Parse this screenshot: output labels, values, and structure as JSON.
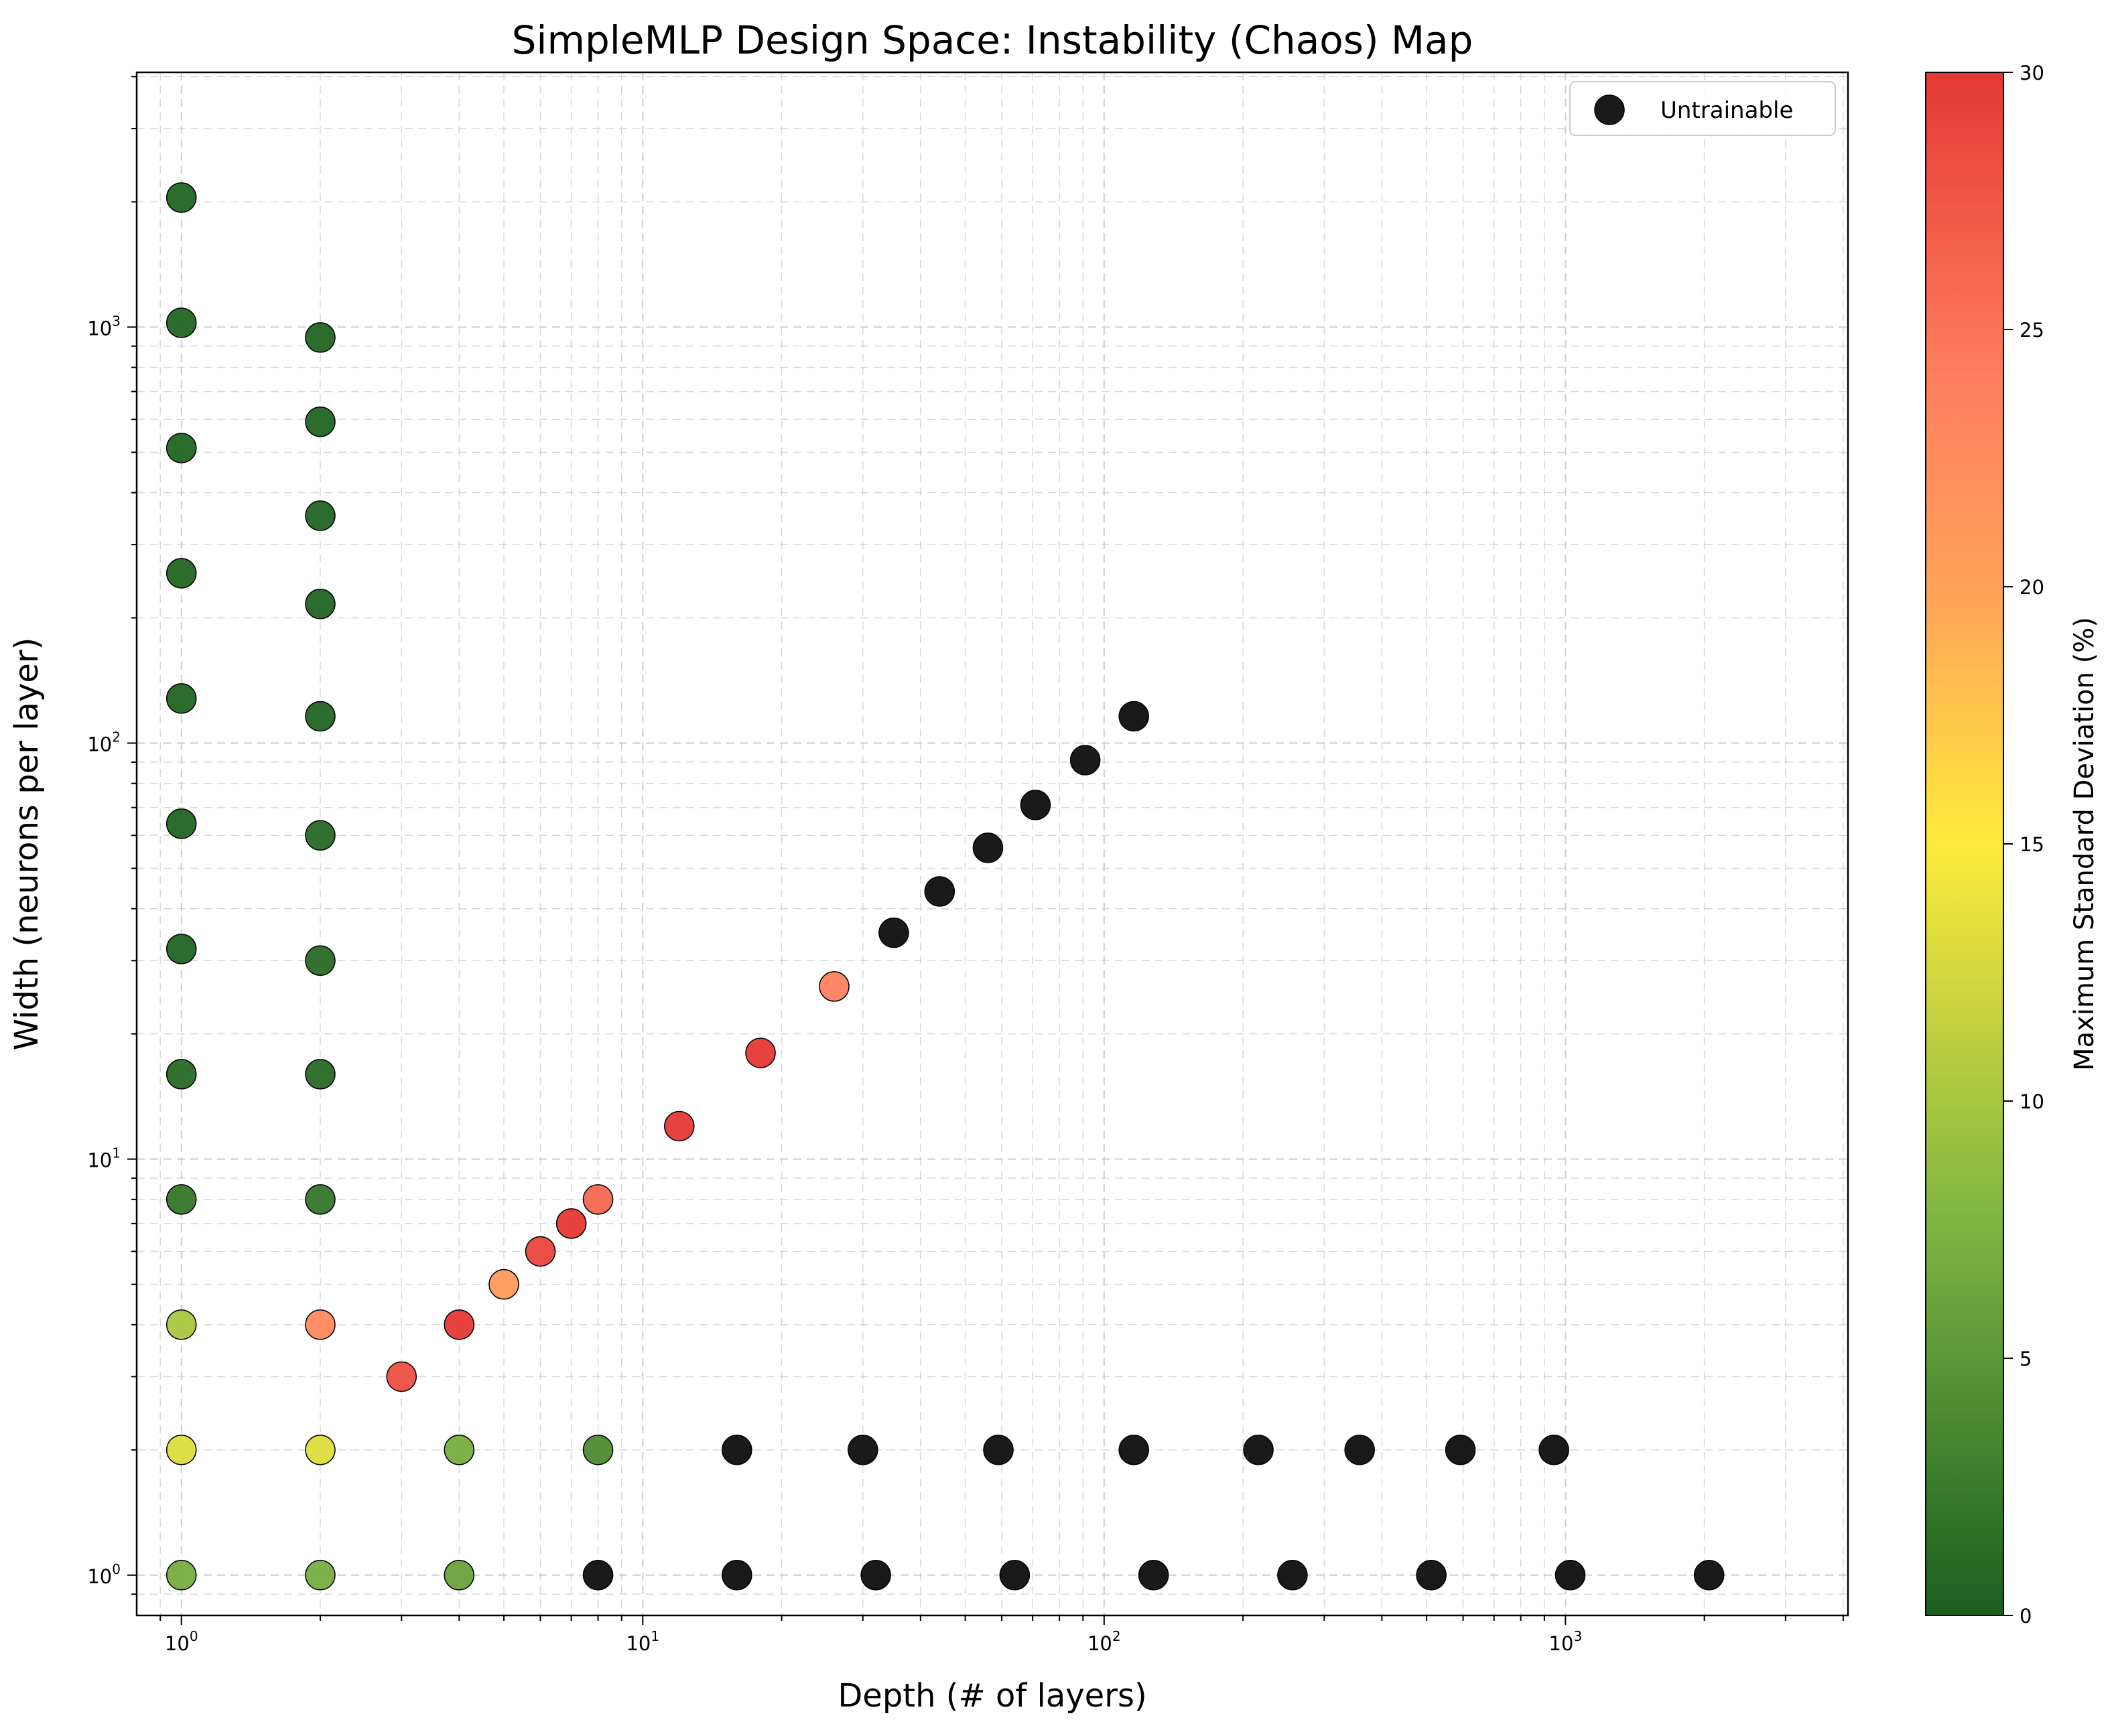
{
  "chart_data": {
    "type": "scatter",
    "title": "SimpleMLP Design Space: Instability (Chaos) Map",
    "xlabel": "Depth (# of layers)",
    "ylabel": "Width (neurons per layer)",
    "xscale": "log",
    "yscale": "log",
    "xlim": [
      0.8,
      4096
    ],
    "ylim": [
      0.8,
      4096
    ],
    "x_ticks": [
      {
        "base": "10",
        "exp": "0",
        "value": 1
      },
      {
        "base": "10",
        "exp": "1",
        "value": 10
      },
      {
        "base": "10",
        "exp": "2",
        "value": 100
      },
      {
        "base": "10",
        "exp": "3",
        "value": 1000
      }
    ],
    "y_ticks": [
      {
        "base": "10",
        "exp": "0",
        "value": 1
      },
      {
        "base": "10",
        "exp": "1",
        "value": 10
      },
      {
        "base": "10",
        "exp": "2",
        "value": 100
      },
      {
        "base": "10",
        "exp": "3",
        "value": 1000
      }
    ],
    "grid": true,
    "legend": {
      "position": "top-right",
      "entries": [
        "Untrainable"
      ]
    },
    "colorbar": {
      "label": "Maximum Standard Deviation (%)",
      "range": [
        0,
        30
      ],
      "ticks": [
        "0",
        "5",
        "10",
        "15",
        "20",
        "25",
        "30"
      ],
      "colors": [
        "#1b5e20",
        "#7cb342",
        "#ffeb3b",
        "#ffa15a",
        "#ff7f5e",
        "#e53935"
      ]
    },
    "untrainable_color": "#1a1a1a",
    "trainable": [
      {
        "x": 1,
        "y": 2048,
        "std": 0.5
      },
      {
        "x": 1,
        "y": 1024,
        "std": 0.5
      },
      {
        "x": 1,
        "y": 512,
        "std": 0.5
      },
      {
        "x": 1,
        "y": 256,
        "std": 0.5
      },
      {
        "x": 1,
        "y": 128,
        "std": 0.5
      },
      {
        "x": 1,
        "y": 64,
        "std": 0.5
      },
      {
        "x": 1,
        "y": 32,
        "std": 0.5
      },
      {
        "x": 1,
        "y": 16,
        "std": 1
      },
      {
        "x": 1,
        "y": 8,
        "std": 2
      },
      {
        "x": 1,
        "y": 4,
        "std": 10
      },
      {
        "x": 1,
        "y": 2,
        "std": 13
      },
      {
        "x": 1,
        "y": 1,
        "std": 7
      },
      {
        "x": 2,
        "y": 944,
        "std": 0.5
      },
      {
        "x": 2,
        "y": 592,
        "std": 0.5
      },
      {
        "x": 2,
        "y": 352,
        "std": 0.5
      },
      {
        "x": 2,
        "y": 216,
        "std": 0.5
      },
      {
        "x": 2,
        "y": 116,
        "std": 0.5
      },
      {
        "x": 2,
        "y": 60,
        "std": 1
      },
      {
        "x": 2,
        "y": 30,
        "std": 1
      },
      {
        "x": 2,
        "y": 16,
        "std": 1
      },
      {
        "x": 2,
        "y": 8,
        "std": 2
      },
      {
        "x": 2,
        "y": 4,
        "std": 23
      },
      {
        "x": 2,
        "y": 2,
        "std": 13
      },
      {
        "x": 2,
        "y": 1,
        "std": 7
      },
      {
        "x": 3,
        "y": 3,
        "std": 28
      },
      {
        "x": 4,
        "y": 4,
        "std": 30
      },
      {
        "x": 4,
        "y": 2,
        "std": 7
      },
      {
        "x": 4,
        "y": 1,
        "std": 6
      },
      {
        "x": 5,
        "y": 5,
        "std": 21
      },
      {
        "x": 6,
        "y": 6,
        "std": 29
      },
      {
        "x": 7,
        "y": 7,
        "std": 30
      },
      {
        "x": 8,
        "y": 8,
        "std": 26
      },
      {
        "x": 8,
        "y": 2,
        "std": 4
      },
      {
        "x": 12,
        "y": 12,
        "std": 30
      },
      {
        "x": 18,
        "y": 18,
        "std": 30
      },
      {
        "x": 26,
        "y": 26,
        "std": 24
      }
    ],
    "untrainable": [
      {
        "x": 35,
        "y": 35
      },
      {
        "x": 44,
        "y": 44
      },
      {
        "x": 56,
        "y": 56
      },
      {
        "x": 71,
        "y": 71
      },
      {
        "x": 91,
        "y": 91
      },
      {
        "x": 116,
        "y": 116
      },
      {
        "x": 16,
        "y": 2
      },
      {
        "x": 30,
        "y": 2
      },
      {
        "x": 59,
        "y": 2
      },
      {
        "x": 116,
        "y": 2
      },
      {
        "x": 216,
        "y": 2
      },
      {
        "x": 358,
        "y": 2
      },
      {
        "x": 592,
        "y": 2
      },
      {
        "x": 944,
        "y": 2
      },
      {
        "x": 8,
        "y": 1
      },
      {
        "x": 16,
        "y": 1
      },
      {
        "x": 32,
        "y": 1
      },
      {
        "x": 64,
        "y": 1
      },
      {
        "x": 128,
        "y": 1
      },
      {
        "x": 256,
        "y": 1
      },
      {
        "x": 512,
        "y": 1
      },
      {
        "x": 1024,
        "y": 1
      },
      {
        "x": 2048,
        "y": 1
      }
    ]
  }
}
